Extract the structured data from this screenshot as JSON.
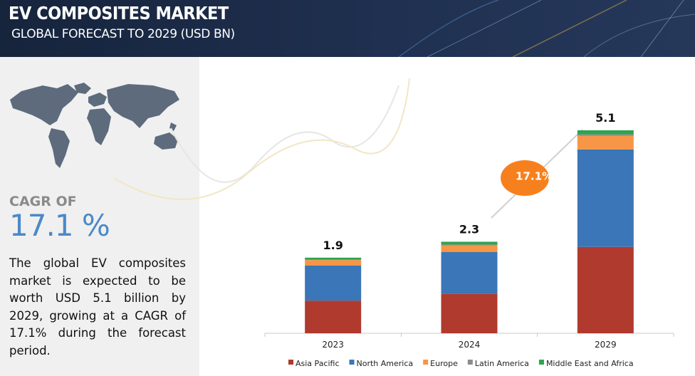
{
  "header": {
    "title": "EV COMPOSITES MARKET",
    "subtitle": "GLOBAL FORECAST TO 2029 (USD BN)"
  },
  "panel": {
    "cagr_heading": "CAGR OF",
    "cagr_value": "17.1 %",
    "description": "The global EV composites market is expected to be worth USD 5.1 billion by 2029, growing at a CAGR of 17.1% during the forecast period."
  },
  "chart_data": {
    "type": "stacked_bar",
    "categories": [
      "2023",
      "2024",
      "2029"
    ],
    "series": [
      {
        "name": "Asia Pacific",
        "color": "#b03a2e",
        "values": [
          0.82,
          0.99,
          2.17
        ]
      },
      {
        "name": "North America",
        "color": "#3a76b8",
        "values": [
          0.88,
          1.05,
          2.45
        ]
      },
      {
        "name": "Europe",
        "color": "#f79646",
        "values": [
          0.14,
          0.17,
          0.34
        ]
      },
      {
        "name": "Latin America",
        "color": "#8c8c8c",
        "values": [
          0.01,
          0.02,
          0.04
        ]
      },
      {
        "name": "Middle East and Africa",
        "color": "#2ea44f",
        "values": [
          0.05,
          0.07,
          0.1
        ]
      }
    ],
    "totals": [
      1.9,
      2.3,
      5.1
    ],
    "annotation": "17.1%"
  }
}
